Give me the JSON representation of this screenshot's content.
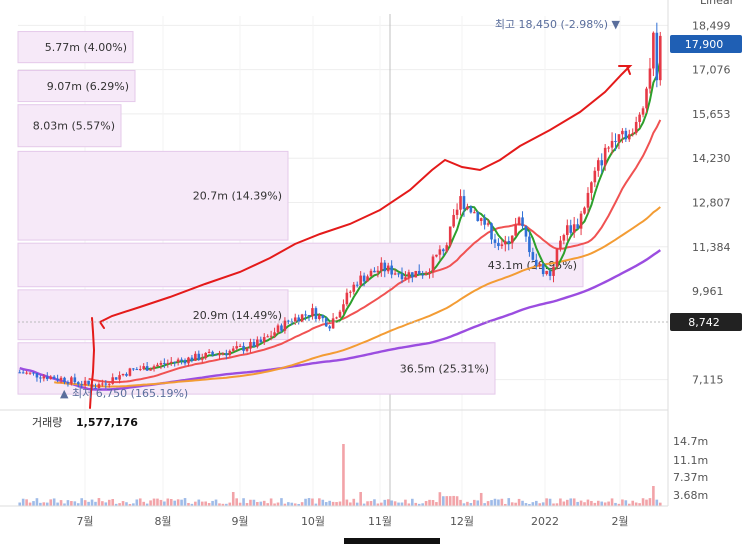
{
  "chart_data": {
    "type": "candlestick",
    "scale_label": "Linear",
    "y_ticks": [
      "18,499",
      "17,076",
      "15,653",
      "14,230",
      "12,807",
      "11,384",
      "9,961",
      "7,115"
    ],
    "x_ticks": [
      "7월",
      "8월",
      "9월",
      "10월",
      "11월",
      "12월",
      "2022",
      "2월"
    ],
    "current_price": "17,900",
    "crosshair_price": "8,742",
    "high_label": "최고 18,450 (-2.98%) ▼",
    "low_label": "▲ 최저 6,750 (165.19%)",
    "volume_label": "거래량",
    "volume_value": "1,577,176",
    "volume_ticks": [
      "14.7m",
      "11.1m",
      "7.37m",
      "3.68m"
    ],
    "volume_profile": [
      {
        "label": "5.77m (4.00%)",
        "price_low": 17300,
        "price_high": 18300,
        "share": 4.0
      },
      {
        "label": "9.07m (6.29%)",
        "price_low": 16050,
        "price_high": 17050,
        "share": 6.29
      },
      {
        "label": "8.03m (5.57%)",
        "price_low": 14600,
        "price_high": 15950,
        "share": 5.57
      },
      {
        "label": "20.7m (14.39%)",
        "price_low": 11600,
        "price_high": 14450,
        "share": 14.39
      },
      {
        "label": "43.1m (29.95%)",
        "price_low": 10100,
        "price_high": 11500,
        "share": 29.95
      },
      {
        "label": "20.9m (14.49%)",
        "price_low": 8400,
        "price_high": 10000,
        "share": 14.49
      },
      {
        "label": "36.5m (25.31%)",
        "price_low": 6650,
        "price_high": 8300,
        "share": 25.31
      }
    ],
    "colors": {
      "up": "#e63946",
      "down": "#2f6fd6",
      "ma5": "#2ca02c",
      "ma20": "#f05252",
      "ma60": "#f39c34",
      "ma120": "#9b4de0",
      "profile": "#f6e9f8",
      "annot": "#e41a1a"
    }
  }
}
